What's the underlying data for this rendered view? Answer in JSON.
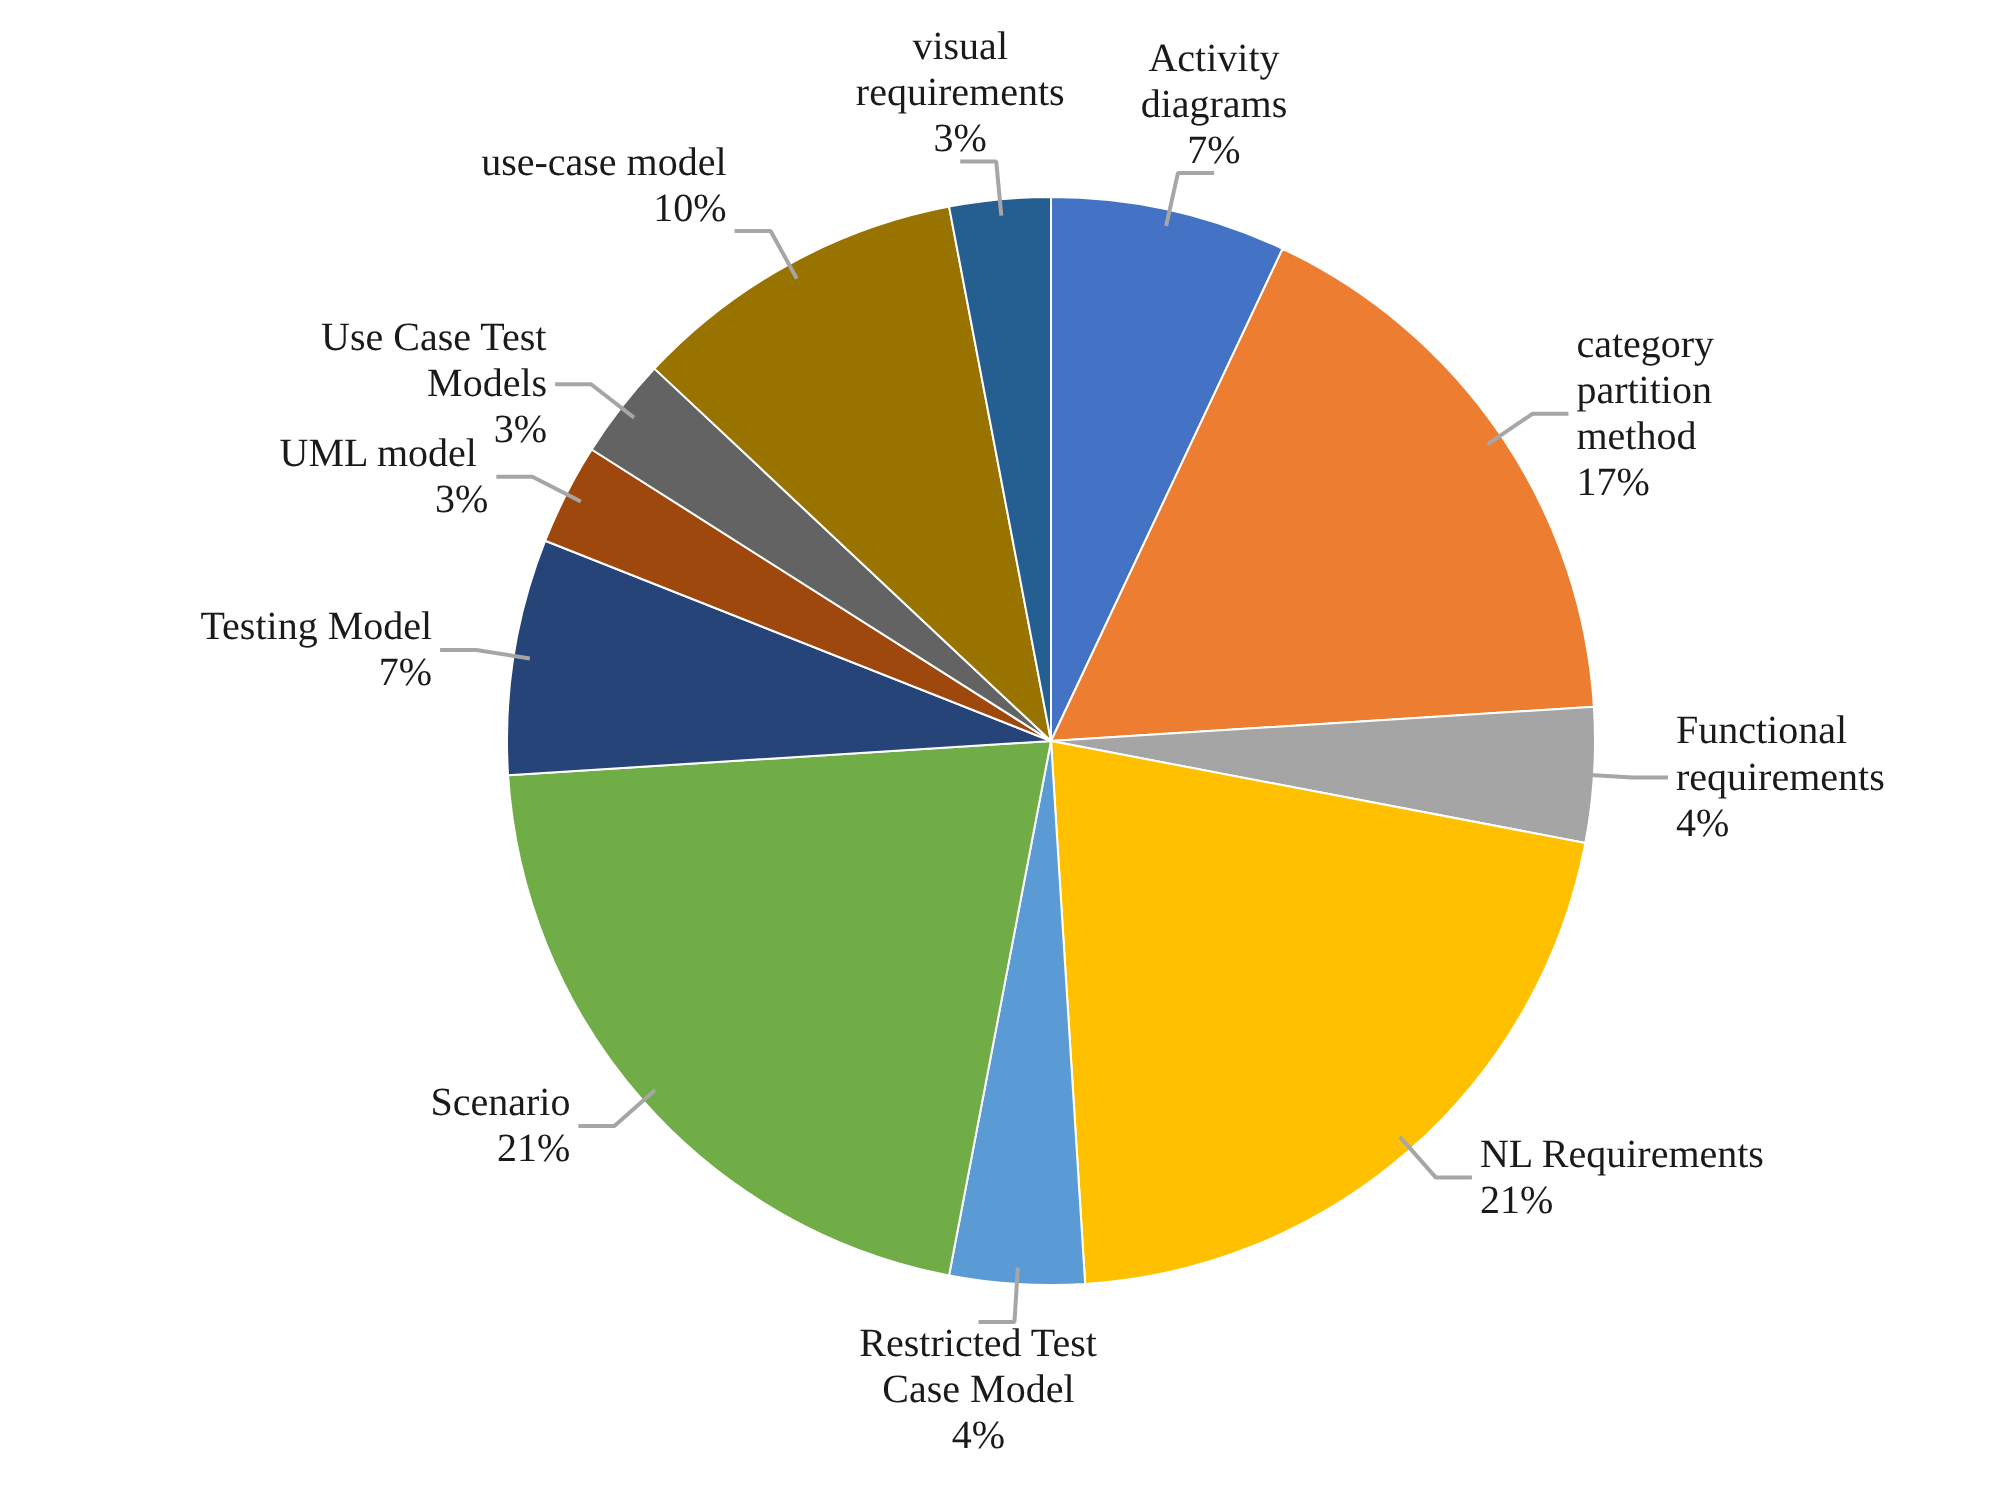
{
  "chart_data": {
    "type": "pie",
    "categories": [
      "Activity diagrams",
      "category partition method",
      "Functional requirements",
      "NL Requirements",
      "Restricted Test Case Model",
      "Scenario",
      "Testing Model",
      "UML  model",
      "Use Case Test Models",
      "use-case model",
      "visual requirements"
    ],
    "values": [
      7,
      17,
      4,
      21,
      4,
      21,
      7,
      3,
      3,
      10,
      3
    ],
    "value_labels": [
      "7%",
      "17%",
      "4%",
      "21%",
      "4%",
      "21%",
      "7%",
      "3%",
      "3%",
      "10%",
      "3%"
    ],
    "colors": [
      "#4472c4",
      "#ed7d31",
      "#a5a5a5",
      "#ffc000",
      "#5b9bd5",
      "#70ad47",
      "#264478",
      "#9e480e",
      "#636363",
      "#997300",
      "#255e91"
    ]
  }
}
